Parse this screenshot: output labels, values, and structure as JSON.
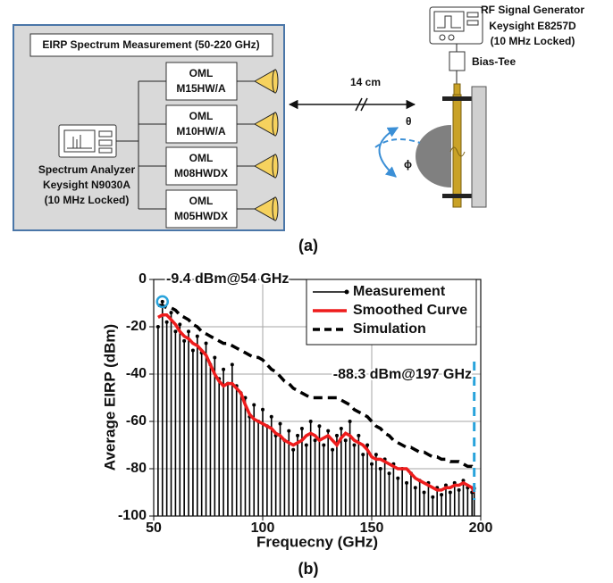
{
  "diagram": {
    "title": "EIRP Spectrum Measurement (50-220 GHz)",
    "analyzer": [
      "Spectrum Analyzer",
      "Keysight N9030A",
      "(10 MHz Locked)"
    ],
    "oml": [
      [
        "OML",
        "M15HW/A"
      ],
      [
        "OML",
        "M10HW/A"
      ],
      [
        "OML",
        "M08HWDX"
      ],
      [
        "OML",
        "M05HWDX"
      ]
    ],
    "distance": "14 cm",
    "generator": [
      "RF Signal Generator",
      "Keysight E8257D",
      "(10 MHz Locked)"
    ],
    "bias_tee": "Bias-Tee",
    "theta": "θ",
    "phi": "ϕ"
  },
  "caption_a": "(a)",
  "caption_b": "(b)",
  "chart_data": {
    "type": "line",
    "xlabel": "Frequecny (GHz)",
    "ylabel": "Average EIRP (dBm)",
    "xlim": [
      50,
      200
    ],
    "xticks": [
      50,
      100,
      150,
      200
    ],
    "ylim": [
      -100,
      0
    ],
    "yticks": [
      0,
      -20,
      -40,
      -60,
      -80,
      -100
    ],
    "grid": true,
    "legend": "upper right",
    "highlight_color": "#29a3db",
    "annotations": [
      "-9.4 dBm@54 GHz",
      "-88.3 dBm@197 GHz"
    ],
    "x": [
      52,
      54,
      56,
      58,
      60,
      62,
      64,
      66,
      68,
      70,
      72,
      74,
      76,
      78,
      80,
      82,
      84,
      86,
      88,
      90,
      92,
      94,
      96,
      98,
      100,
      102,
      104,
      106,
      108,
      110,
      112,
      114,
      116,
      118,
      120,
      122,
      124,
      126,
      128,
      130,
      132,
      134,
      136,
      138,
      140,
      142,
      144,
      146,
      148,
      150,
      152,
      154,
      156,
      158,
      160,
      162,
      164,
      166,
      168,
      170,
      172,
      174,
      176,
      178,
      180,
      182,
      184,
      186,
      188,
      190,
      192,
      194,
      196,
      197
    ],
    "series": [
      {
        "name": "Measurement",
        "color": "#000000",
        "style": "stem",
        "values": [
          -20,
          -9.4,
          -18,
          -14,
          -22,
          -19,
          -26,
          -22,
          -30,
          -24,
          -31,
          -27,
          -36,
          -33,
          -42,
          -38,
          -44,
          -36,
          -45,
          -48,
          -50,
          -58,
          -53,
          -60,
          -55,
          -62,
          -58,
          -66,
          -61,
          -68,
          -64,
          -72,
          -66,
          -63,
          -70,
          -60,
          -68,
          -62,
          -70,
          -64,
          -72,
          -66,
          -63,
          -68,
          -60,
          -70,
          -66,
          -74,
          -70,
          -78,
          -74,
          -80,
          -76,
          -82,
          -78,
          -84,
          -80,
          -86,
          -82,
          -88,
          -85,
          -90,
          -86,
          -92,
          -88,
          -91,
          -87,
          -90,
          -86,
          -89,
          -85,
          -88,
          -90,
          -88.3
        ]
      },
      {
        "name": "Smoothed Curve",
        "color": "#ee1c1c",
        "style": "solid",
        "values": [
          -16,
          -15,
          -15,
          -17,
          -19,
          -22,
          -24,
          -25,
          -27,
          -28,
          -30,
          -32,
          -36,
          -40,
          -43,
          -45,
          -44,
          -44,
          -46,
          -48,
          -53,
          -57,
          -59,
          -60,
          -61,
          -62,
          -63,
          -65,
          -66,
          -68,
          -69,
          -70,
          -69,
          -68,
          -66,
          -65,
          -66,
          -68,
          -67,
          -66,
          -68,
          -70,
          -67,
          -65,
          -66,
          -68,
          -69,
          -70,
          -72,
          -75,
          -76,
          -76,
          -77,
          -78,
          -79,
          -80,
          -80,
          -80,
          -82,
          -84,
          -85,
          -86,
          -87,
          -88,
          -89,
          -89,
          -88,
          -88,
          -87,
          -87,
          -86,
          -87,
          -88,
          -90
        ]
      },
      {
        "name": "Simulation",
        "color": "#000000",
        "style": "dashed",
        "values": [
          -11,
          -11,
          -12,
          -12,
          -13,
          -15,
          -16,
          -17,
          -19,
          -20,
          -22,
          -23,
          -24,
          -25,
          -26,
          -27,
          -27,
          -28,
          -29,
          -30,
          -31,
          -32,
          -33,
          -33,
          -34,
          -36,
          -38,
          -39,
          -41,
          -43,
          -44,
          -46,
          -47,
          -48,
          -49,
          -50,
          -50,
          -50,
          -50,
          -50,
          -50,
          -50,
          -51,
          -52,
          -53,
          -55,
          -56,
          -57,
          -58,
          -60,
          -62,
          -63,
          -65,
          -66,
          -68,
          -69,
          -70,
          -71,
          -71,
          -72,
          -73,
          -73,
          -74,
          -75,
          -75,
          -76,
          -76,
          -77,
          -77,
          -77,
          -78,
          -79,
          -79,
          -80
        ]
      }
    ]
  }
}
